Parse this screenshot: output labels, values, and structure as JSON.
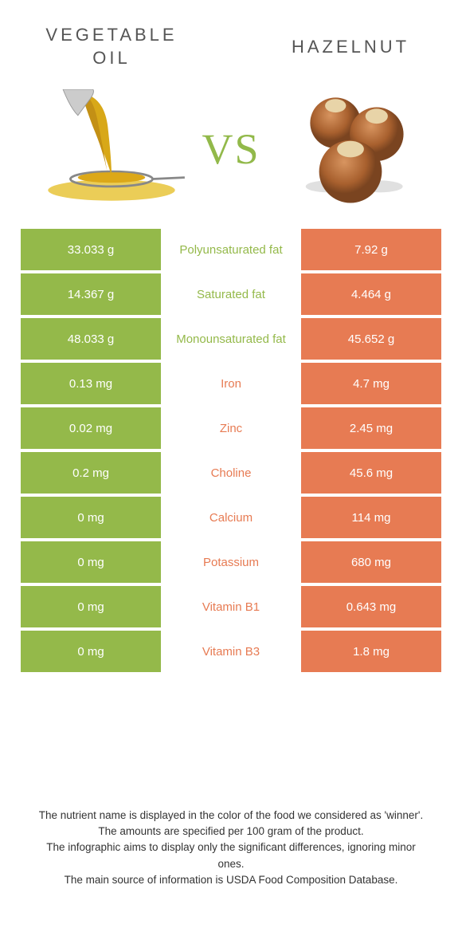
{
  "left": {
    "title": "Vegetable oil",
    "color": "#94b94a"
  },
  "right": {
    "title": "Hazelnut",
    "color": "#e77b53"
  },
  "vs": "VS",
  "rows": [
    {
      "left": "33.033 g",
      "label": "Polyunsaturated fat",
      "right": "7.92 g",
      "winner": "left"
    },
    {
      "left": "14.367 g",
      "label": "Saturated fat",
      "right": "4.464 g",
      "winner": "left"
    },
    {
      "left": "48.033 g",
      "label": "Monounsaturated fat",
      "right": "45.652 g",
      "winner": "left"
    },
    {
      "left": "0.13 mg",
      "label": "Iron",
      "right": "4.7 mg",
      "winner": "right"
    },
    {
      "left": "0.02 mg",
      "label": "Zinc",
      "right": "2.45 mg",
      "winner": "right"
    },
    {
      "left": "0.2 mg",
      "label": "Choline",
      "right": "45.6 mg",
      "winner": "right"
    },
    {
      "left": "0 mg",
      "label": "Calcium",
      "right": "114 mg",
      "winner": "right"
    },
    {
      "left": "0 mg",
      "label": "Potassium",
      "right": "680 mg",
      "winner": "right"
    },
    {
      "left": "0 mg",
      "label": "Vitamin B1",
      "right": "0.643 mg",
      "winner": "right"
    },
    {
      "left": "0 mg",
      "label": "Vitamin B3",
      "right": "1.8 mg",
      "winner": "right"
    }
  ],
  "footer": [
    "The nutrient name is displayed in the color of the food we considered as 'winner'.",
    "The amounts are specified per 100 gram of the product.",
    "The infographic aims to display only the significant differences, ignoring minor ones.",
    "The main source of information is USDA Food Composition Database."
  ]
}
